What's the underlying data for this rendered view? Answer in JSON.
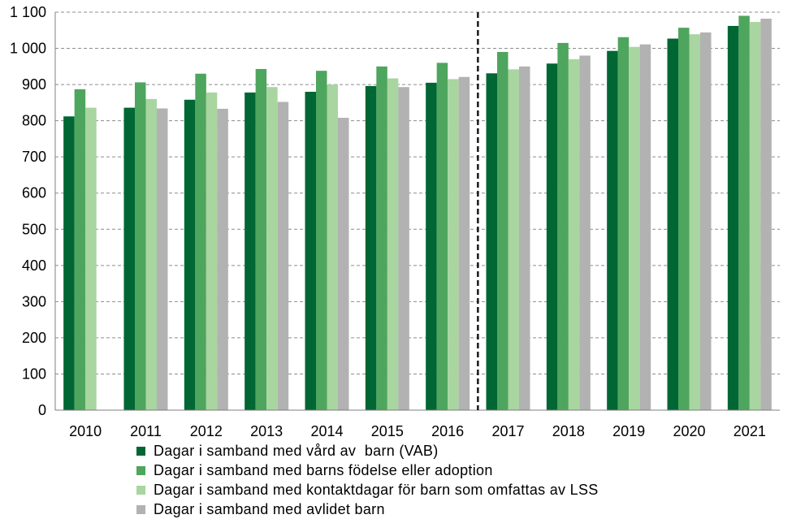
{
  "chart_data": {
    "type": "bar",
    "title": "",
    "xlabel": "",
    "ylabel": "",
    "ylim": [
      0,
      1100
    ],
    "yticks": [
      "0",
      "100",
      "200",
      "300",
      "400",
      "500",
      "600",
      "700",
      "800",
      "900",
      "1 000",
      "1 100"
    ],
    "categories": [
      "2010",
      "2011",
      "2012",
      "2013",
      "2014",
      "2015",
      "2016",
      "2017",
      "2018",
      "2019",
      "2020",
      "2021"
    ],
    "grid": true,
    "legend_position": "bottom",
    "divider_after_category": "2016",
    "series": [
      {
        "name": "Dagar i samband med vård av  barn (VAB)",
        "color": "#006633",
        "values": [
          812,
          836,
          858,
          878,
          880,
          896,
          905,
          931,
          958,
          993,
          1027,
          1062
        ]
      },
      {
        "name": "Dagar i samband med barns födelse eller adoption",
        "color": "#4ea55d",
        "values": [
          887,
          906,
          930,
          943,
          938,
          950,
          960,
          990,
          1015,
          1031,
          1057,
          1090
        ]
      },
      {
        "name": "Dagar i samband med kontaktdagar för barn som omfattas av LSS",
        "color": "#a8d5a0",
        "values": [
          836,
          860,
          878,
          893,
          900,
          917,
          915,
          942,
          970,
          1004,
          1039,
          1073
        ]
      },
      {
        "name": "Dagar i samband med avlidet barn",
        "color": "#b2b2b2",
        "values": [
          null,
          834,
          833,
          852,
          808,
          893,
          921,
          950,
          980,
          1011,
          1044,
          1082
        ]
      }
    ]
  }
}
